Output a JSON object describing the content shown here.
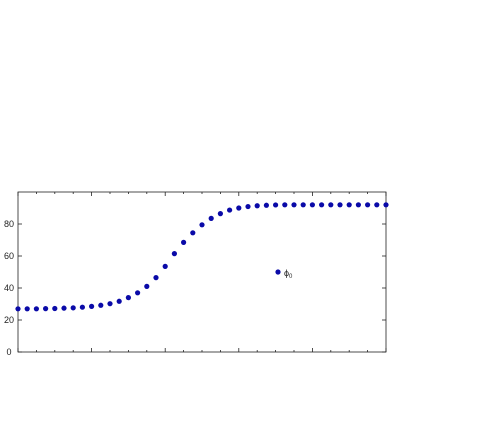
{
  "chart_data": {
    "type": "scatter",
    "title": "",
    "xlabel": "",
    "ylabel": "",
    "xlim": [
      0,
      40
    ],
    "ylim": [
      0,
      100
    ],
    "yticks": [
      0,
      20,
      40,
      60,
      80
    ],
    "xticks_major": [
      0,
      8,
      16,
      24,
      32,
      40
    ],
    "xticks_minor": [
      2,
      4,
      6,
      10,
      12,
      14,
      18,
      20,
      22,
      26,
      28,
      30,
      34,
      36,
      38
    ],
    "grid": false,
    "legend": {
      "position": "center-right",
      "marker_color": "#0a0aa8"
    },
    "series": [
      {
        "name": "ϕ",
        "name_subscript": "0",
        "color": "#0a0aa8",
        "x": [
          0,
          1,
          2,
          3,
          4,
          5,
          6,
          7,
          8,
          9,
          10,
          11,
          12,
          13,
          14,
          15,
          16,
          17,
          18,
          19,
          20,
          21,
          22,
          23,
          24,
          25,
          26,
          27,
          28,
          29,
          30,
          31,
          32,
          33,
          34,
          35,
          36,
          37,
          38,
          39,
          40
        ],
        "y": [
          27,
          27,
          27,
          27.1,
          27.2,
          27.4,
          27.6,
          28,
          28.5,
          29.2,
          30.2,
          31.7,
          34,
          37,
          41,
          46.5,
          53.5,
          61.5,
          68.5,
          74.5,
          79.5,
          83.5,
          86.5,
          88.7,
          90,
          90.9,
          91.4,
          91.7,
          91.9,
          92,
          92,
          92,
          92,
          92,
          92,
          92,
          92,
          92,
          92,
          92,
          92
        ]
      }
    ]
  }
}
